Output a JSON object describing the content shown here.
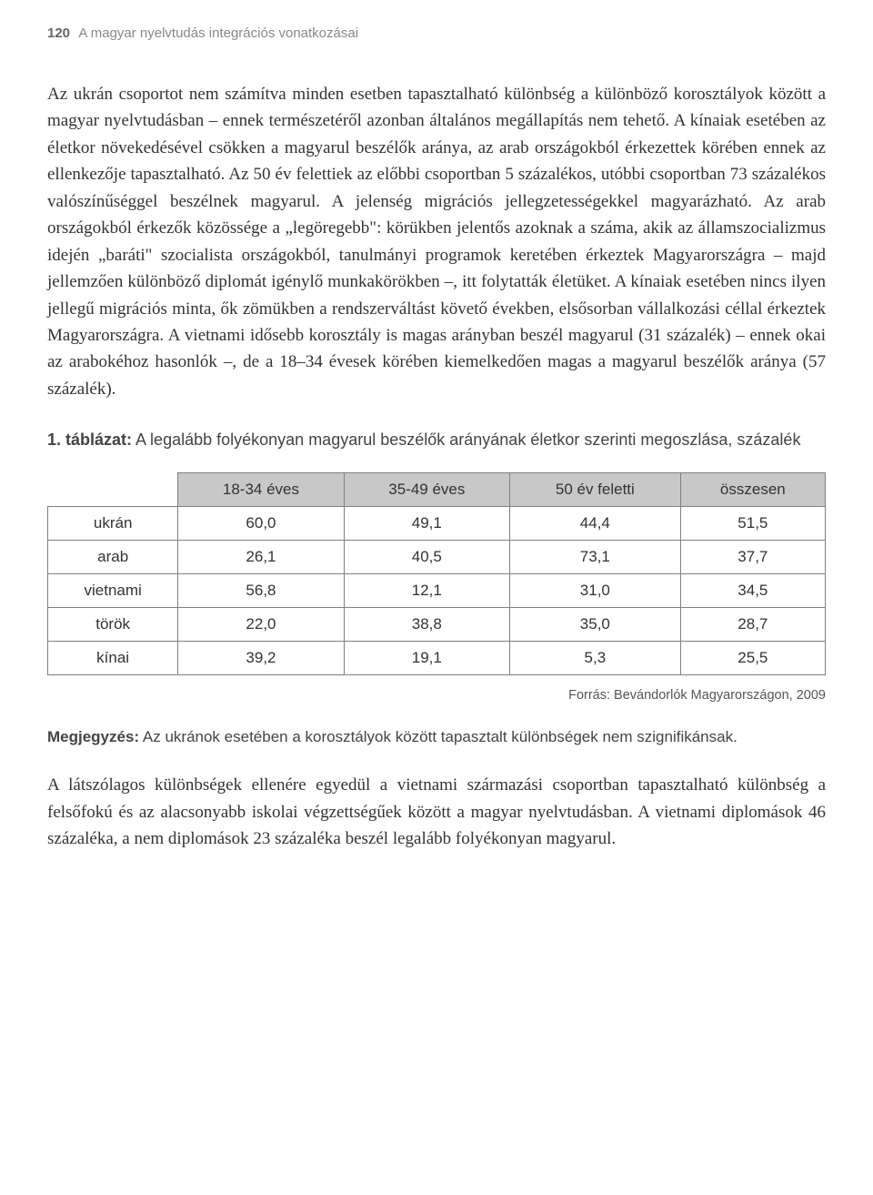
{
  "header": {
    "pageNumber": "120",
    "running": "A magyar nyelvtudás integrációs vonatkozásai"
  },
  "paragraph1": "Az ukrán csoportot nem számítva minden esetben tapasztalható különbség a különböző korosztályok között a magyar nyelvtudásban – ennek természetéről azonban általános megállapítás nem tehető. A kínaiak esetében az életkor növekedésével csökken a magyarul beszélők aránya, az arab országokból érkezettek körében ennek az ellenkezője tapasztalható. Az 50 év felettiek az előbbi csoportban 5 százalékos, utóbbi csoportban 73 százalékos valószínűséggel beszélnek magyarul. A jelenség migrációs jellegzetességekkel magyarázható. Az arab országokból érkezők közössége a „legöregebb\": körükben jelentős azoknak a száma, akik az államszocializmus idején „baráti\" szocialista országokból, tanulmányi programok keretében érkeztek Magyarországra – majd jellemzően különböző diplomát igénylő munkakörökben –, itt folytatták életüket. A kínaiak esetében nincs ilyen jellegű migrációs minta, ők zömükben a rendszerváltást követő években, elsősorban vállalkozási céllal érkeztek Magyarországra. A vietnami idősebb korosztály is magas arányban beszél magyarul (31 százalék) – ennek okai az arabokéhoz hasonlók –, de a 18–34 évesek körében kiemelkedően magas a magyarul beszélők aránya (57 százalék).",
  "table": {
    "titleLabel": "1. táblázat:",
    "titleText": "A legalább folyékonyan magyarul beszélők arányának életkor szerinti megoszlása, százalék",
    "columns": [
      "18-34 éves",
      "35-49 éves",
      "50 év feletti",
      "összesen"
    ],
    "rows": [
      {
        "label": "ukrán",
        "values": [
          "60,0",
          "49,1",
          "44,4",
          "51,5"
        ]
      },
      {
        "label": "arab",
        "values": [
          "26,1",
          "40,5",
          "73,1",
          "37,7"
        ]
      },
      {
        "label": "vietnami",
        "values": [
          "56,8",
          "12,1",
          "31,0",
          "34,5"
        ]
      },
      {
        "label": "török",
        "values": [
          "22,0",
          "38,8",
          "35,0",
          "28,7"
        ]
      },
      {
        "label": "kínai",
        "values": [
          "39,2",
          "19,1",
          "5,3",
          "25,5"
        ]
      }
    ],
    "headerBg": "#c8c8c8",
    "borderColor": "#808080",
    "font": "Arial"
  },
  "source": "Forrás: Bevándorlók Magyarországon, 2009",
  "note": {
    "label": "Megjegyzés:",
    "text": "Az ukránok esetében a korosztályok között tapasztalt különbségek nem szignifikánsak."
  },
  "paragraph2": "A látszólagos különbségek ellenére egyedül a vietnami származási csoportban tapasztalható különbség a felsőfokú és az alacsonyabb iskolai végzettségűek között a magyar nyelvtudásban. A vietnami diplomások 46 százaléka, a nem diplomások 23 százaléka beszél legalább folyékonyan magyarul."
}
